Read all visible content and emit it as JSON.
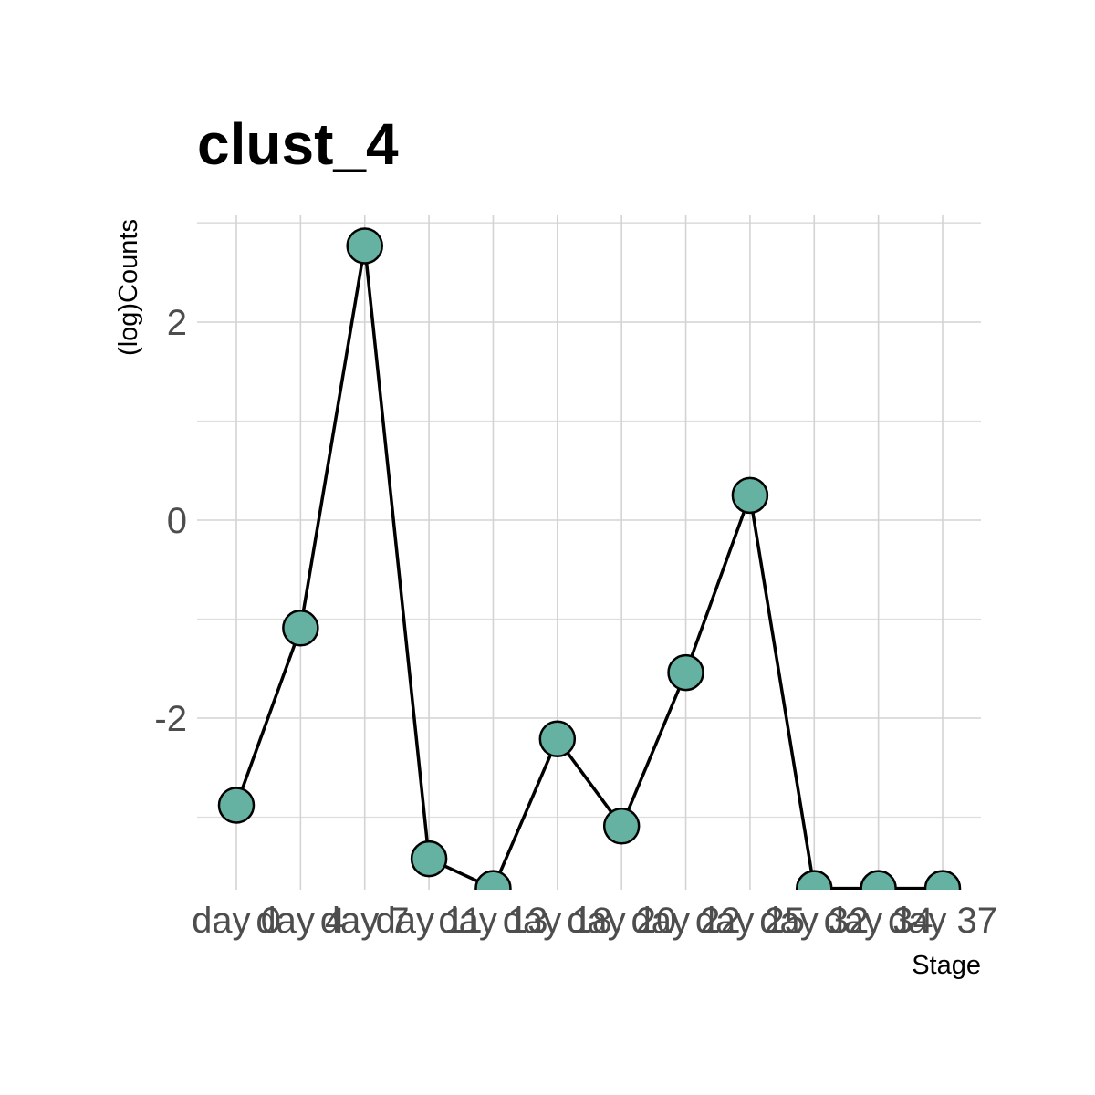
{
  "chart_data": {
    "type": "line",
    "title": "clust_4",
    "xlabel": "Stage",
    "ylabel": "(log)Counts",
    "categories": [
      "day 0",
      "day 4",
      "day 7",
      "day 11",
      "day 13",
      "day 18",
      "day 20",
      "day 22",
      "day 25",
      "day 32",
      "day 34",
      "day 37"
    ],
    "series": [
      {
        "values": [
          -2.88,
          -1.09,
          2.77,
          -3.42,
          -3.72,
          -2.21,
          -3.09,
          -1.54,
          0.25,
          -3.72,
          -3.72,
          -3.72
        ]
      }
    ],
    "yticks": [
      -2,
      0,
      2
    ],
    "ytick_labels": [
      "-2",
      "0",
      "2"
    ],
    "ylim": [
      -3.72,
      3.0
    ],
    "grid": true,
    "point_color": "#66b2a2",
    "line_color": "#000000"
  }
}
